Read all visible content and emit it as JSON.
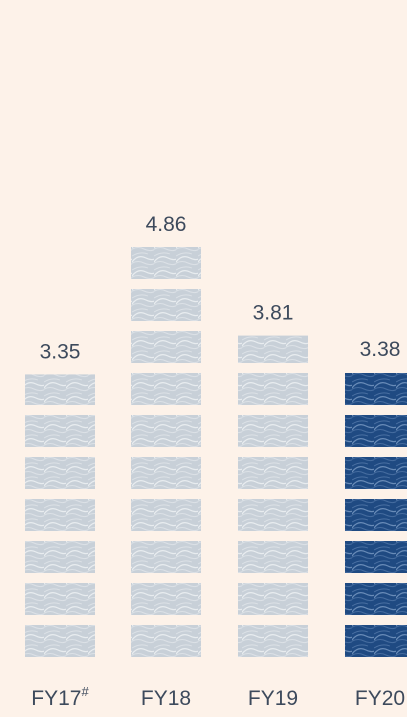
{
  "chart_data": {
    "type": "bar",
    "title": "",
    "xlabel": "",
    "ylabel": "",
    "categories": [
      "FY17#",
      "FY18",
      "FY19",
      "FY20"
    ],
    "values": [
      3.35,
      4.86,
      3.81,
      3.38
    ],
    "value_labels": [
      "3.35",
      "4.86",
      "3.81",
      "3.38"
    ],
    "tick_labels": [
      {
        "base": "FY17",
        "sup": "#"
      },
      {
        "base": "FY18",
        "sup": ""
      },
      {
        "base": "FY19",
        "sup": ""
      },
      {
        "base": "FY20",
        "sup": ""
      }
    ],
    "ylim": [
      0,
      5
    ],
    "grid": false,
    "legend": "none",
    "highlight_index": 3,
    "colors": {
      "background": "#fdf2e9",
      "bar_default": "#c8d0d8",
      "bar_default_texture": "#eef1f3",
      "bar_highlight": "#1f4a82",
      "bar_highlight_texture": "#7b9bc4",
      "text": "#3d4a5c"
    }
  }
}
